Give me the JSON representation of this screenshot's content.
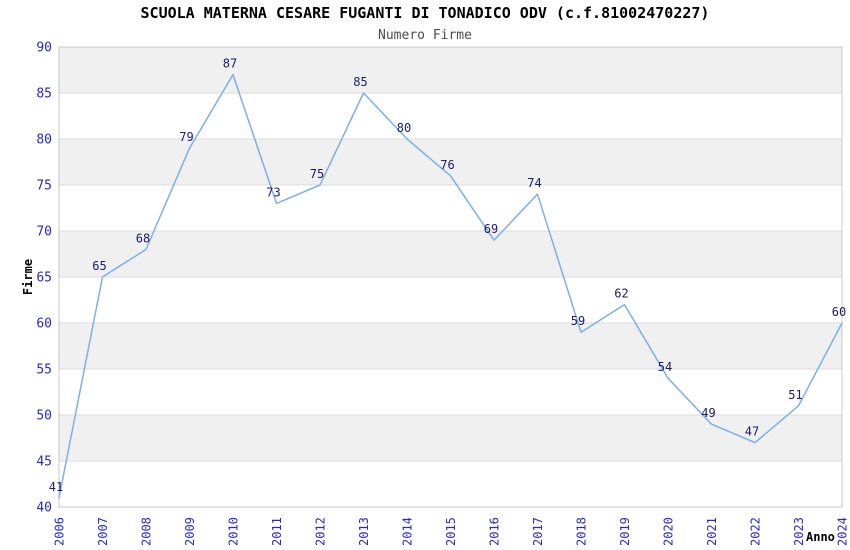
{
  "header": {
    "title": "SCUOLA MATERNA CESARE FUGANTI DI TONADICO ODV (c.f.81002470227)",
    "subtitle": "Numero Firme"
  },
  "chart_data": {
    "type": "line",
    "title": "SCUOLA MATERNA CESARE FUGANTI DI TONADICO ODV (c.f.81002470227)",
    "subtitle": "Numero Firme",
    "xlabel": "Anno",
    "ylabel": "Firme",
    "x": [
      2006,
      2007,
      2008,
      2009,
      2010,
      2011,
      2012,
      2013,
      2014,
      2015,
      2016,
      2017,
      2018,
      2019,
      2020,
      2021,
      2022,
      2023,
      2024
    ],
    "values": [
      41,
      65,
      68,
      79,
      87,
      73,
      75,
      85,
      80,
      76,
      69,
      74,
      59,
      62,
      54,
      49,
      47,
      51,
      60
    ],
    "ylim": [
      40,
      90
    ],
    "ytick_step": 5,
    "yticks": [
      40,
      45,
      50,
      55,
      60,
      65,
      70,
      75,
      80,
      85,
      90
    ],
    "legend": "none",
    "grid": "horizontal-bands",
    "data_labels_visible": true,
    "colors": {
      "line": "#7cb0e8",
      "data_label": "#1a1a70",
      "tick_label": "#2929cc",
      "band": "#f0f0f0",
      "gridline": "#dddddd",
      "plot_border": "#c8c8c8",
      "title": "#000000",
      "subtitle": "#4d4d4d",
      "axis_title": "#000000",
      "background": "#ffffff"
    }
  }
}
